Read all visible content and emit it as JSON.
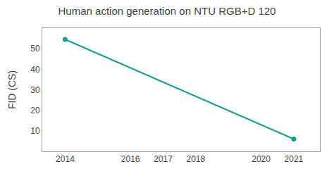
{
  "chart_data": {
    "type": "line",
    "title": "Human action generation on NTU RGB+D 120",
    "x": [
      2014,
      2021
    ],
    "values": [
      54.5,
      6.0
    ],
    "color": "#1a9e8f",
    "marker": "circle",
    "ylabel": "FID (CS)",
    "xlim": [
      2013.3,
      2021.8
    ],
    "ylim": [
      0,
      60
    ],
    "xticks": [
      2014,
      2016,
      2017,
      2018,
      2020,
      2021
    ],
    "yticks": [
      10,
      20,
      30,
      40,
      50
    ],
    "grid": false
  }
}
